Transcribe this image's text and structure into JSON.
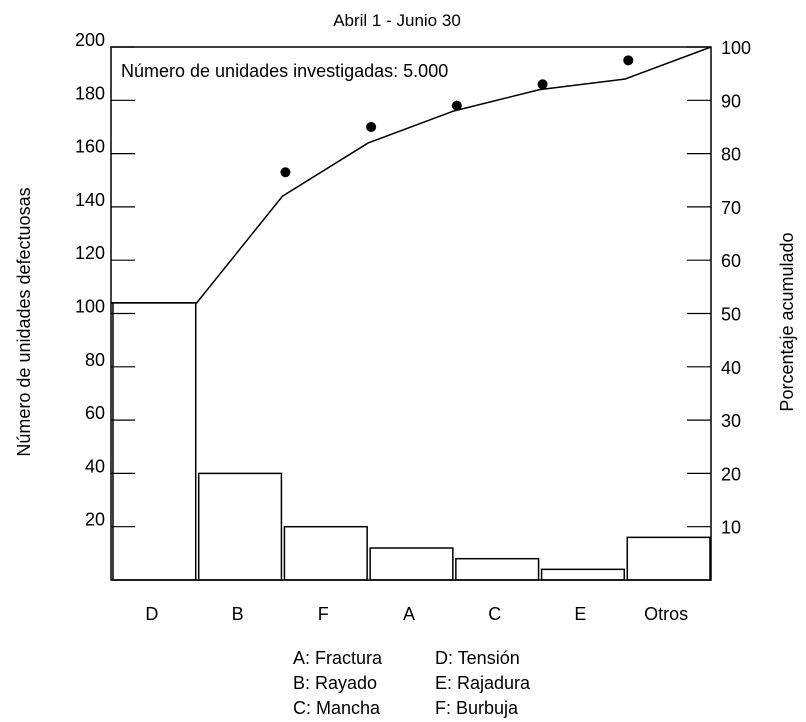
{
  "chart_data": {
    "type": "bar",
    "title": "Abril 1 - Junio 30",
    "annotation": "Número de unidades investigadas: 5.000",
    "ylabel": "Número de unidades defectuosas",
    "y2label": "Porcentaje acumulado",
    "categories": [
      "D",
      "B",
      "F",
      "A",
      "C",
      "E",
      "Otros"
    ],
    "values": [
      104,
      40,
      20,
      12,
      8,
      4,
      16
    ],
    "ylim": [
      0,
      200
    ],
    "yticks": [
      20,
      40,
      60,
      80,
      100,
      120,
      140,
      160,
      180,
      200
    ],
    "y2lim": [
      0,
      100
    ],
    "y2ticks": [
      10,
      20,
      30,
      40,
      50,
      60,
      70,
      80,
      90,
      100
    ],
    "cumulative_line": {
      "x": [
        1,
        2,
        3,
        4,
        5,
        6,
        7
      ],
      "y": [
        52,
        72,
        82,
        88,
        92,
        94,
        100
      ]
    },
    "points": {
      "x": [
        2,
        3,
        4,
        5,
        6
      ],
      "y": [
        76.5,
        85,
        89,
        93,
        97.5
      ]
    },
    "grid": false
  },
  "legend": {
    "rows": [
      [
        "A: Fractura",
        "D: Tensión"
      ],
      [
        "B: Rayado",
        "E: Rajadura"
      ],
      [
        "C: Mancha",
        "F: Burbuja"
      ]
    ]
  }
}
